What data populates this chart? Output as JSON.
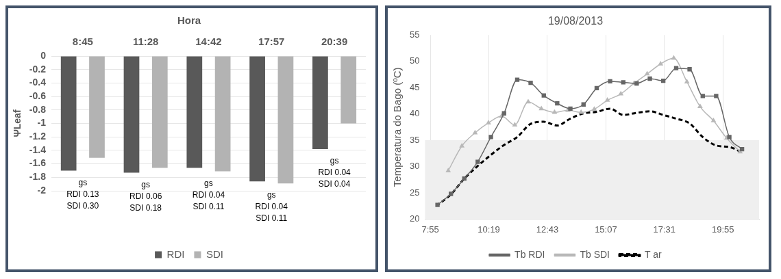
{
  "chart_data": [
    {
      "type": "bar",
      "title": "Hora",
      "ylabel": "ΨLeaf",
      "categories": [
        "8:45",
        "11:28",
        "14:42",
        "17:57",
        "20:39"
      ],
      "series": [
        {
          "name": "RDI",
          "color": "#595959",
          "values": [
            -1.7,
            -1.73,
            -1.66,
            -1.86,
            -1.38
          ]
        },
        {
          "name": "SDI",
          "color": "#b3b3b3",
          "values": [
            -1.51,
            -1.66,
            -1.71,
            -1.89,
            -1.0
          ]
        }
      ],
      "ylim": [
        -2,
        0
      ],
      "yticks": [
        0,
        -0.2,
        -0.4,
        -0.6,
        -0.8,
        -1,
        -1.2,
        -1.4,
        -1.6,
        -1.8,
        -2
      ],
      "grid": "y",
      "legend": "bottom",
      "annotations": [
        "gs\nRDI 0.13\nSDI 0.30",
        "gs\nRDI 0.06\nSDI 0.18",
        "gs\nRDI 0.04\nSDI 0.11",
        "gs\nRDI 0.04\nSDI 0.11",
        "gs\nRDI 0.04\nSDI 0.04"
      ]
    },
    {
      "type": "line",
      "title": "19/08/2013",
      "ylabel": "Temperatura do Bago (ºC)",
      "series": [
        {
          "name": "Tb RDI",
          "color": "#666666",
          "marker": "square",
          "x": [
            8.21,
            8.76,
            9.31,
            9.86,
            10.4,
            10.94,
            11.48,
            12.03,
            12.57,
            13.12,
            13.66,
            14.2,
            14.74,
            15.29,
            15.83,
            16.38,
            16.92,
            17.47,
            18.0,
            18.55,
            19.09,
            19.64,
            20.18,
            20.7
          ],
          "values": [
            22.7,
            24.8,
            27.7,
            30.9,
            35.6,
            40.1,
            46.5,
            45.9,
            43.5,
            42.0,
            41.0,
            41.8,
            44.9,
            46.2,
            46.0,
            45.8,
            46.7,
            46.3,
            48.7,
            48.5,
            43.4,
            43.4,
            35.6,
            33.3
          ]
        },
        {
          "name": "Tb SDI",
          "color": "#b8b8b8",
          "marker": "triangle",
          "x": [
            8.65,
            9.21,
            9.75,
            10.3,
            10.84,
            11.38,
            11.93,
            12.47,
            13.01,
            13.56,
            14.1,
            14.64,
            15.18,
            15.73,
            16.27,
            16.81,
            17.36,
            17.9,
            18.44,
            18.98,
            19.53,
            20.07,
            20.62
          ],
          "values": [
            29.2,
            33.9,
            36.4,
            38.3,
            39.6,
            37.9,
            42.3,
            41.0,
            40.3,
            40.7,
            40.3,
            40.9,
            42.6,
            43.8,
            45.8,
            47.6,
            49.5,
            50.6,
            46.1,
            41.4,
            38.7,
            35.4,
            32.8
          ]
        },
        {
          "name": "T ar",
          "color": "#000000",
          "marker": "none",
          "line_style": "dashed",
          "x": [
            8.16,
            8.76,
            9.31,
            9.86,
            10.4,
            10.94,
            11.48,
            12.03,
            12.57,
            13.12,
            13.66,
            14.2,
            14.74,
            15.29,
            15.83,
            16.38,
            16.92,
            17.47,
            18.0,
            18.55,
            19.09,
            19.64,
            20.18,
            20.7
          ],
          "values": [
            22.5,
            24.7,
            27.7,
            30.1,
            32.2,
            34.1,
            35.6,
            38.1,
            38.5,
            37.8,
            39.1,
            40.1,
            40.4,
            41.0,
            39.8,
            40.2,
            40.5,
            39.8,
            39.1,
            38.2,
            35.6,
            34.0,
            33.7,
            32.7
          ]
        }
      ],
      "xlim": [
        7.7,
        21.4
      ],
      "xticks": [
        {
          "value": 7.9167,
          "label": "7:55"
        },
        {
          "value": 10.3167,
          "label": "10:19"
        },
        {
          "value": 12.7167,
          "label": "12:43"
        },
        {
          "value": 15.1167,
          "label": "15:07"
        },
        {
          "value": 17.5167,
          "label": "17:31"
        },
        {
          "value": 19.9167,
          "label": "19:55"
        }
      ],
      "ylim": [
        20,
        55
      ],
      "yticks": [
        20,
        25,
        30,
        35,
        40,
        45,
        50,
        55
      ],
      "grid": "x",
      "legend": "bottom",
      "bands": [
        {
          "axis": "y",
          "from": 20,
          "to": 35,
          "color": "#efefef"
        }
      ]
    }
  ]
}
